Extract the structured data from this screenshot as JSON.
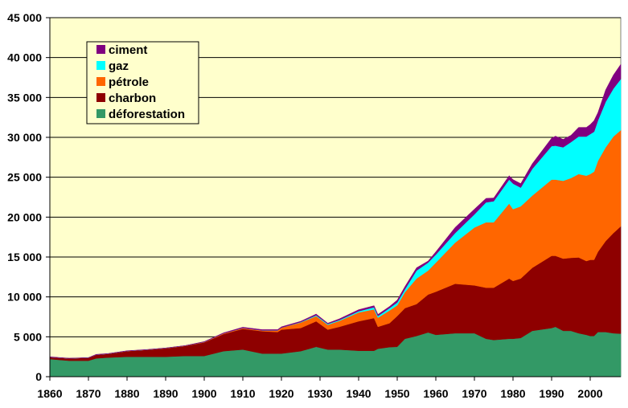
{
  "chart_data": {
    "type": "area",
    "stacked": true,
    "title": "",
    "xlabel": "",
    "ylabel": "",
    "xlim": [
      1860,
      2008
    ],
    "ylim": [
      0,
      45000
    ],
    "grid": true,
    "legend_position": "top-left",
    "y_ticks": [
      "0",
      "5 000",
      "10 000",
      "15 000",
      "20 000",
      "25 000",
      "30 000",
      "35 000",
      "40 000",
      "45 000"
    ],
    "y_tick_values": [
      0,
      5000,
      10000,
      15000,
      20000,
      25000,
      30000,
      35000,
      40000,
      45000
    ],
    "x_ticks": [
      "1860",
      "1870",
      "1880",
      "1890",
      "1900",
      "1910",
      "1920",
      "1930",
      "1940",
      "1950",
      "1960",
      "1970",
      "1980",
      "1990",
      "2000"
    ],
    "x": [
      1860,
      1865,
      1870,
      1872,
      1875,
      1880,
      1885,
      1890,
      1895,
      1900,
      1905,
      1910,
      1915,
      1919,
      1920,
      1925,
      1929,
      1932,
      1935,
      1940,
      1944,
      1945,
      1948,
      1950,
      1952,
      1955,
      1958,
      1960,
      1965,
      1970,
      1973,
      1975,
      1979,
      1980,
      1982,
      1985,
      1990,
      1991,
      1993,
      1995,
      1997,
      1999,
      2000,
      2001,
      2002,
      2004,
      2006,
      2008
    ],
    "series": [
      {
        "name": "déforestation",
        "color": "#339966",
        "values": [
          2200,
          2000,
          2000,
          2300,
          2400,
          2500,
          2500,
          2500,
          2600,
          2600,
          3200,
          3400,
          2900,
          2900,
          2900,
          3200,
          3750,
          3400,
          3400,
          3250,
          3250,
          3500,
          3700,
          3750,
          4750,
          5100,
          5550,
          5250,
          5450,
          5450,
          4750,
          4600,
          4750,
          4750,
          4850,
          5750,
          6100,
          6250,
          5750,
          5750,
          5450,
          5250,
          5100,
          5100,
          5600,
          5600,
          5450,
          5400
        ]
      },
      {
        "name": "charbon",
        "color": "#8E0000",
        "values": [
          250,
          300,
          380,
          450,
          450,
          700,
          850,
          1050,
          1250,
          1700,
          2150,
          2600,
          2800,
          2700,
          3000,
          2900,
          3200,
          2500,
          2850,
          3700,
          4100,
          2750,
          3000,
          3850,
          3850,
          4000,
          4750,
          5400,
          6200,
          6000,
          6400,
          6550,
          7550,
          7250,
          7450,
          7900,
          9050,
          8900,
          9050,
          9150,
          9500,
          9250,
          9550,
          9550,
          10050,
          11400,
          12550,
          13450
        ]
      },
      {
        "name": "pétrole",
        "color": "#FF6600",
        "values": [
          0,
          0,
          0,
          0,
          20,
          20,
          20,
          30,
          30,
          50,
          80,
          100,
          100,
          200,
          250,
          700,
          650,
          600,
          750,
          1100,
          1100,
          1150,
          1600,
          1350,
          2000,
          3200,
          3000,
          3650,
          5150,
          7250,
          8200,
          8200,
          9400,
          9000,
          9050,
          9050,
          9550,
          9550,
          9750,
          10000,
          10450,
          10700,
          10750,
          11050,
          11400,
          11750,
          12100,
          12050
        ]
      },
      {
        "name": "gaz",
        "color": "#00FFFF",
        "values": [
          0,
          0,
          0,
          0,
          0,
          0,
          0,
          0,
          0,
          0,
          0,
          0,
          0,
          0,
          0,
          50,
          100,
          100,
          100,
          150,
          250,
          200,
          300,
          350,
          350,
          1000,
          1000,
          1000,
          1200,
          1650,
          2500,
          2650,
          3000,
          3200,
          2350,
          3350,
          4200,
          4250,
          4200,
          4500,
          4700,
          4900,
          5000,
          5000,
          5050,
          5700,
          6000,
          6400
        ]
      },
      {
        "name": "ciment",
        "color": "#800080",
        "values": [
          50,
          20,
          20,
          50,
          30,
          30,
          30,
          20,
          20,
          50,
          70,
          100,
          100,
          100,
          100,
          100,
          150,
          100,
          150,
          200,
          200,
          200,
          200,
          300,
          350,
          350,
          200,
          350,
          700,
          650,
          500,
          400,
          500,
          500,
          500,
          650,
          1000,
          1200,
          1000,
          850,
          1150,
          1150,
          1200,
          1400,
          1000,
          1500,
          1700,
          1850
        ]
      }
    ],
    "legend_order": [
      "ciment",
      "gaz",
      "pétrole",
      "charbon",
      "déforestation"
    ]
  },
  "colors": {
    "plot_background": "#FFFFCC",
    "gridline": "#000000"
  }
}
